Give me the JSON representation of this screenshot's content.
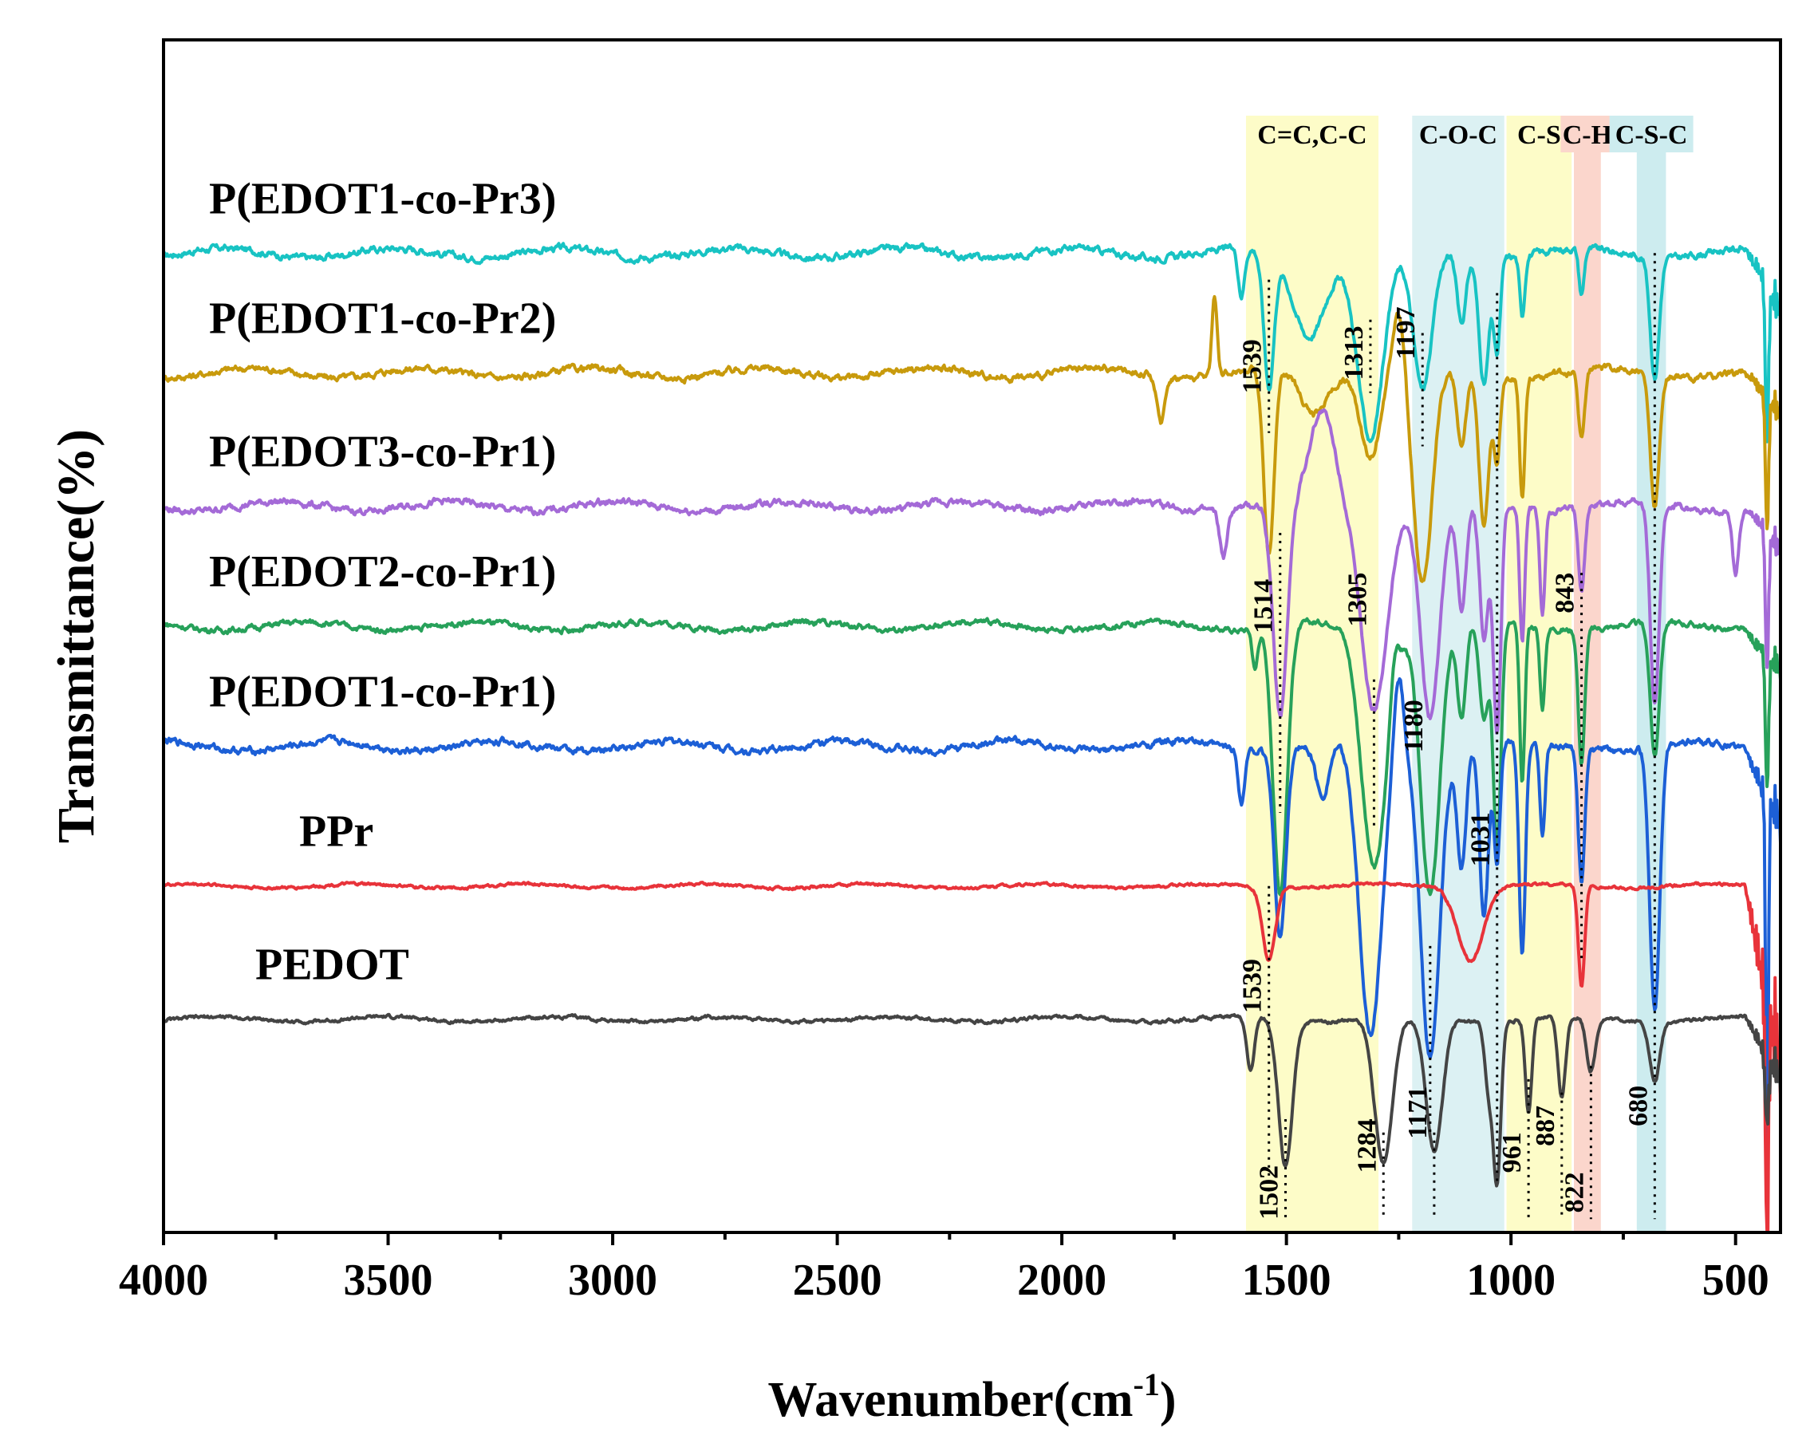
{
  "chart_data": {
    "type": "line",
    "title": "",
    "xlabel": "Wavenumber(cm",
    "xlabel_sup": "-1",
    "xlabel_close": ")",
    "ylabel": "Transmittance(%)",
    "xlim": [
      4000,
      400
    ],
    "x_ticks": [
      4000,
      3500,
      3000,
      2500,
      2000,
      1500,
      1000,
      500
    ],
    "x_tick_labels": [
      "4000",
      "3500",
      "3000",
      "2500",
      "2000",
      "1500",
      "1000",
      "500"
    ],
    "y_ticks": false,
    "grid": false,
    "legend": "none (series labeled inline above each trace)",
    "regions": [
      {
        "label": "C=C,C-C",
        "from": 1590,
        "to": 1295,
        "color": "#fdfcc8",
        "label_color": "#fdfcc8"
      },
      {
        "label": "C-O-C",
        "from": 1220,
        "to": 1015,
        "color": "#dcf1f3",
        "label_color": "#dcf1f3"
      },
      {
        "label": "C-S",
        "from": 1010,
        "to": 865,
        "color": "#fdfcc8",
        "label_color": "#fdfcc8"
      },
      {
        "label": "C-H",
        "from": 860,
        "to": 800,
        "color": "#fbd6cc",
        "label_color": "#fbd6cc"
      },
      {
        "label": "C-S-C",
        "from": 720,
        "to": 655,
        "color": "#cdecef",
        "label_color": "#cdecef"
      }
    ],
    "series": [
      {
        "name": "P(EDOT1-co-Pr3)",
        "color": "#18c3c3",
        "baseline": 5.6,
        "noise": 0.06,
        "peaks": [
          [
            1600,
            0.35,
            10
          ],
          [
            1539,
            1.0,
            16
          ],
          [
            1450,
            0.6,
            50
          ],
          [
            1313,
            1.4,
            40
          ],
          [
            1197,
            1.05,
            30
          ],
          [
            1110,
            0.5,
            14
          ],
          [
            1060,
            0.95,
            16
          ],
          [
            1031,
            0.7,
            10
          ],
          [
            975,
            0.45,
            8
          ],
          [
            843,
            0.35,
            8
          ],
          [
            680,
            0.9,
            14
          ],
          [
            430,
            1.2,
            5
          ]
        ],
        "edge_drop": 0.4
      },
      {
        "name": "P(EDOT1-co-Pr2)",
        "color": "#c89a0c",
        "baseline": 4.7,
        "noise": 0.06,
        "peaks": [
          [
            1780,
            0.35,
            12
          ],
          [
            1539,
            1.4,
            16
          ],
          [
            1440,
            0.3,
            40
          ],
          [
            1313,
            0.6,
            30
          ],
          [
            1197,
            1.6,
            30
          ],
          [
            1110,
            0.6,
            14
          ],
          [
            1060,
            1.1,
            16
          ],
          [
            1031,
            0.6,
            10
          ],
          [
            975,
            0.9,
            8
          ],
          [
            843,
            0.5,
            10
          ],
          [
            680,
            1.0,
            14
          ],
          [
            430,
            1.0,
            5
          ]
        ],
        "bumps": [
          [
            1660,
            0.6,
            8
          ],
          [
            1250,
            0.5,
            20
          ]
        ],
        "edge_drop": 0.3
      },
      {
        "name": "P(EDOT3-co-Pr1)",
        "color": "#a46ad7",
        "baseline": 3.7,
        "noise": 0.06,
        "peaks": [
          [
            1640,
            0.35,
            12
          ],
          [
            1514,
            1.6,
            22
          ],
          [
            1305,
            1.5,
            40
          ],
          [
            1180,
            1.6,
            30
          ],
          [
            1110,
            0.8,
            14
          ],
          [
            1060,
            1.0,
            14
          ],
          [
            1031,
            1.7,
            12
          ],
          [
            975,
            1.0,
            8
          ],
          [
            930,
            0.8,
            8
          ],
          [
            843,
            0.6,
            10
          ],
          [
            680,
            1.5,
            14
          ],
          [
            500,
            0.5,
            10
          ],
          [
            430,
            1.0,
            5
          ]
        ],
        "bumps": [
          [
            1420,
            0.7,
            40
          ]
        ],
        "edge_drop": 0.3
      },
      {
        "name": "P(EDOT2-co-Pr1)",
        "color": "#27a15a",
        "baseline": 2.8,
        "noise": 0.05,
        "peaks": [
          [
            1570,
            0.3,
            8
          ],
          [
            1514,
            2.0,
            22
          ],
          [
            1305,
            1.8,
            40
          ],
          [
            1180,
            2.0,
            30
          ],
          [
            1110,
            0.7,
            14
          ],
          [
            1060,
            0.7,
            14
          ],
          [
            1031,
            1.7,
            12
          ],
          [
            975,
            1.2,
            8
          ],
          [
            930,
            0.6,
            8
          ],
          [
            843,
            1.0,
            10
          ],
          [
            680,
            1.0,
            14
          ],
          [
            430,
            1.0,
            5
          ]
        ],
        "bumps": [
          [
            1260,
            0.3,
            12
          ]
        ],
        "edge_drop": 0.3
      },
      {
        "name": "P(EDOT1-co-Pr1)",
        "color": "#1c5fd6",
        "baseline": 1.9,
        "noise": 0.06,
        "peaks": [
          [
            1600,
            0.4,
            10
          ],
          [
            1514,
            1.4,
            18
          ],
          [
            1420,
            0.4,
            20
          ],
          [
            1313,
            2.2,
            35
          ],
          [
            1180,
            2.3,
            30
          ],
          [
            1110,
            0.9,
            14
          ],
          [
            1060,
            1.3,
            14
          ],
          [
            1031,
            0.9,
            10
          ],
          [
            975,
            1.6,
            10
          ],
          [
            930,
            0.7,
            8
          ],
          [
            843,
            1.0,
            10
          ],
          [
            680,
            2.0,
            16
          ],
          [
            430,
            3.0,
            4
          ]
        ],
        "bumps": [
          [
            1250,
            0.6,
            15
          ]
        ],
        "edge_drop": 0.5
      },
      {
        "name": "PPr",
        "color": "#e8333a",
        "baseline": 0.85,
        "noise": 0.025,
        "peaks": [
          [
            1539,
            0.55,
            20
          ],
          [
            1090,
            0.55,
            40
          ],
          [
            843,
            0.75,
            10
          ],
          [
            430,
            1.8,
            5
          ]
        ],
        "edge_drop": 1.2
      },
      {
        "name": "PEDOT",
        "color": "#444444",
        "baseline": -0.15,
        "noise": 0.03,
        "peaks": [
          [
            1580,
            0.4,
            12
          ],
          [
            1502,
            1.1,
            22
          ],
          [
            1284,
            1.1,
            28
          ],
          [
            1171,
            1.0,
            26
          ],
          [
            1050,
            0.5,
            12
          ],
          [
            1031,
            1.2,
            12
          ],
          [
            961,
            0.7,
            10
          ],
          [
            887,
            0.6,
            12
          ],
          [
            822,
            0.4,
            14
          ],
          [
            680,
            0.45,
            16
          ],
          [
            430,
            0.5,
            6
          ]
        ],
        "edge_drop": 0.4
      }
    ],
    "annotations": [
      {
        "text": "1539",
        "x": 1539,
        "series": "P(EDOT1-co-Pr2)",
        "line_from": 5.4,
        "line_to": 4.25,
        "label_y": 4.75
      },
      {
        "text": "1313",
        "x": 1313,
        "series": "P(EDOT1-co-Pr2)",
        "line_from": 5.1,
        "line_to": 4.55,
        "label_y": 4.85
      },
      {
        "text": "1197",
        "x": 1197,
        "series": "P(EDOT1-co-Pr2)",
        "line_from": 5.0,
        "line_to": 4.15,
        "label_y": 5.0
      },
      {
        "text": "1514",
        "x": 1514,
        "series": "P(EDOT2-co-Pr1)",
        "line_from": 3.5,
        "line_to": 1.4,
        "label_y": 2.95
      },
      {
        "text": "1305",
        "x": 1305,
        "series": "P(EDOT2-co-Pr1)",
        "line_from": 2.4,
        "line_to": 1.3,
        "label_y": 3.0
      },
      {
        "text": "843",
        "x": 843,
        "series": "P(EDOT2-co-Pr1)",
        "line_from": 3.2,
        "line_to": 0.3,
        "label_y": 3.05
      },
      {
        "text": "1180",
        "x": 1180,
        "series": "P(EDOT1-co-Pr1)",
        "line_from": 0.4,
        "line_to": -1.0,
        "label_y": 2.05
      },
      {
        "text": "1031",
        "x": 1031,
        "series": "PPr",
        "line_from": 5.3,
        "line_to": -1.4,
        "label_y": 1.2
      },
      {
        "text": "1539",
        "x": 1539,
        "series": "PEDOT",
        "line_from": 0.85,
        "line_to": -1.4,
        "label_y": 0.1
      },
      {
        "text": "1502",
        "x": 1502,
        "series": "PEDOT",
        "line_from": -0.9,
        "line_to": -1.65,
        "label_y": -1.45
      },
      {
        "text": "1284",
        "x": 1284,
        "series": "PEDOT",
        "line_from": -1.0,
        "line_to": -1.65,
        "label_y": -1.1
      },
      {
        "text": "1171",
        "x": 1171,
        "series": "PEDOT",
        "line_from": -1.0,
        "line_to": -1.65,
        "label_y": -0.85
      },
      {
        "text": "961",
        "x": 961,
        "series": "PEDOT",
        "line_from": -0.6,
        "line_to": -1.65,
        "label_y": -1.15
      },
      {
        "text": "887",
        "x": 887,
        "series": "PEDOT",
        "line_from": -0.7,
        "line_to": -1.65,
        "label_y": -0.95
      },
      {
        "text": "822",
        "x": 822,
        "series": "PEDOT",
        "line_from": -0.5,
        "line_to": -1.65,
        "label_y": -1.45
      },
      {
        "text": "680",
        "x": 680,
        "series": "PEDOT",
        "line_from": 5.6,
        "line_to": -1.65,
        "label_y": -0.8
      }
    ]
  }
}
